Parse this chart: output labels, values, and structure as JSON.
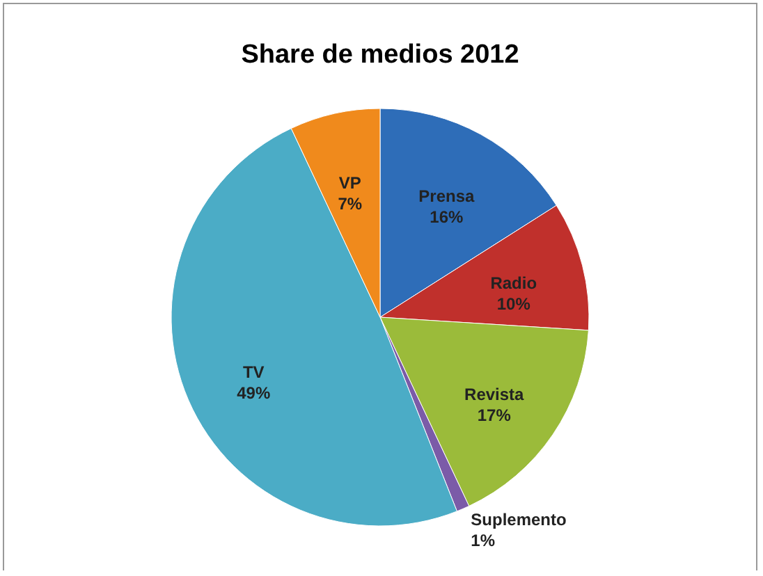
{
  "chart_data": {
    "type": "pie",
    "title": "Share de medios 2012",
    "categories": [
      "Prensa",
      "Radio",
      "Revista",
      "Suplemento",
      "TV",
      "VP"
    ],
    "values": [
      16,
      10,
      17,
      1,
      49,
      7
    ],
    "value_labels": [
      "16%",
      "10%",
      "17%",
      "1%",
      "49%",
      "7%"
    ],
    "colors": [
      "#2e6db8",
      "#c0302c",
      "#9bbb3a",
      "#7b5ba8",
      "#4bacc6",
      "#f08a1c"
    ],
    "legend": false
  }
}
